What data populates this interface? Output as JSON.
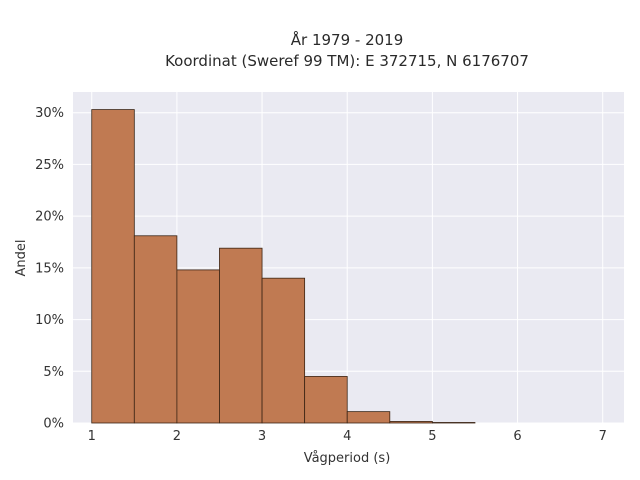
{
  "chart_data": {
    "type": "bar",
    "title_line1": "År 1979 - 2019",
    "title_line2": "Koordinat (Sweref 99 TM): E 372715, N 6176707",
    "xlabel": "Vågperiod (s)",
    "ylabel": "Andel",
    "bin_edges": [
      1.0,
      1.5,
      2.0,
      2.5,
      3.0,
      3.5,
      4.0,
      4.5,
      5.0,
      5.5
    ],
    "values": [
      30.3,
      18.1,
      14.8,
      16.9,
      14.0,
      4.5,
      1.1,
      0.15,
      0.05
    ],
    "xlim": [
      0.78,
      7.25
    ],
    "ylim": [
      0,
      32
    ],
    "xticks": [
      1,
      2,
      3,
      4,
      5,
      6,
      7
    ],
    "xtick_labels": [
      "1",
      "2",
      "3",
      "4",
      "5",
      "6",
      "7"
    ],
    "yticks": [
      0,
      5,
      10,
      15,
      20,
      25,
      30
    ],
    "ytick_labels": [
      "0%",
      "5%",
      "10%",
      "15%",
      "20%",
      "25%",
      "30%"
    ],
    "grid": true,
    "colors": {
      "bar_fill": "#c07a52",
      "bar_edge": "#3b2414",
      "plot_bg": "#eaeaf2",
      "grid": "#ffffff"
    }
  }
}
